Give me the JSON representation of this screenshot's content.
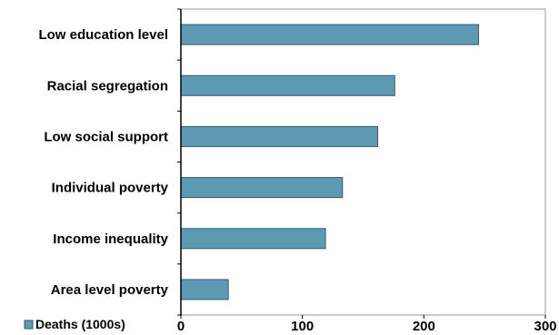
{
  "chart_data": {
    "type": "bar",
    "orientation": "horizontal",
    "categories": [
      "Low education level",
      "Racial segregation",
      "Low social support",
      "Individual poverty",
      "Income inequality",
      "Area level poverty"
    ],
    "series": [
      {
        "name": "Deaths (1000s)",
        "values": [
          245,
          176,
          162,
          133,
          119,
          39
        ]
      }
    ],
    "xlim": [
      0,
      300
    ],
    "x_ticks": [
      0,
      100,
      200,
      300
    ],
    "title": "",
    "xlabel": "",
    "ylabel": "",
    "legend_position": "bottom-left",
    "grid": false,
    "colors": {
      "bar": "#5f9ab5",
      "bar_edge": "#2e5a70",
      "axis": "#000000",
      "frame": "#999999"
    }
  }
}
